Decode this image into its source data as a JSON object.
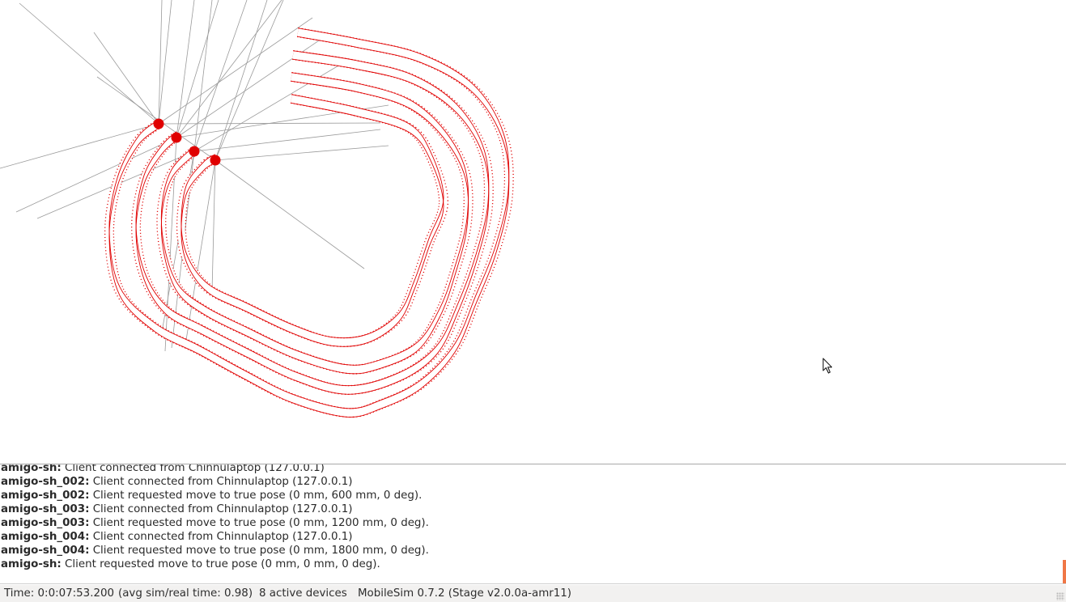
{
  "window": {
    "app": "MobileSim"
  },
  "canvas": {
    "trail_color": "#e00000",
    "laser_color": "#9a9a9a",
    "robots": [
      {
        "name": "amigo-sh",
        "pose": "0 mm, 0 mm, 0 deg"
      },
      {
        "name": "amigo-sh_002",
        "pose": "0 mm, 600 mm, 0 deg"
      },
      {
        "name": "amigo-sh_003",
        "pose": "0 mm, 1200 mm, 0 deg"
      },
      {
        "name": "amigo-sh_004",
        "pose": "0 mm, 1800 mm, 0 deg"
      }
    ]
  },
  "log": {
    "lines": [
      {
        "source": "amigo-sh:",
        "message": "Client connected from Chinnulaptop (127.0.0.1)"
      },
      {
        "source": "amigo-sh_002:",
        "message": "Client connected from Chinnulaptop (127.0.0.1)"
      },
      {
        "source": "amigo-sh_002:",
        "message": "Client requested move to true pose (0 mm, 600 mm, 0 deg)."
      },
      {
        "source": "amigo-sh_003:",
        "message": "Client connected from Chinnulaptop (127.0.0.1)"
      },
      {
        "source": "amigo-sh_003:",
        "message": "Client requested move to true pose (0 mm, 1200 mm, 0 deg)."
      },
      {
        "source": "amigo-sh_004:",
        "message": "Client connected from Chinnulaptop (127.0.0.1)"
      },
      {
        "source": "amigo-sh_004:",
        "message": "Client requested move to true pose (0 mm, 1800 mm, 0 deg)."
      },
      {
        "source": "amigo-sh:",
        "message": "Client requested move to true pose (0 mm, 0 mm, 0 deg)."
      }
    ]
  },
  "status": {
    "time": "Time: 0:0:07:53.200",
    "ratio": "(avg sim/real time: 0.98)",
    "devices": "8 active devices",
    "version": "MobileSim 0.7.2 (Stage v2.0.0a-amr11)"
  }
}
